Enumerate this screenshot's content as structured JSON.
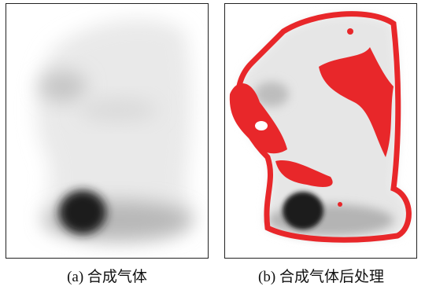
{
  "panels": [
    {
      "caption": "(a) 合成气体"
    },
    {
      "caption": "(b) 合成气体后处理"
    }
  ]
}
